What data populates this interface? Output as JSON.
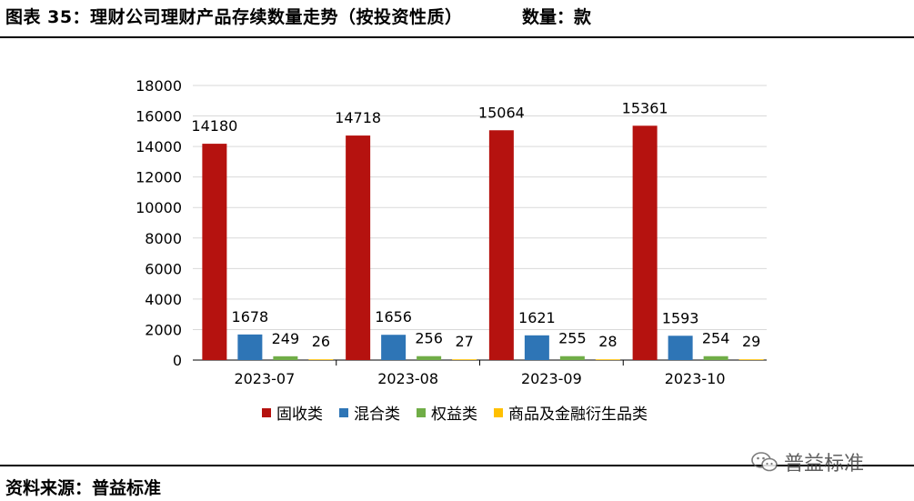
{
  "header": {
    "title": "图表 35：理财公司理财产品存续数量走势（按投资性质）",
    "unit": "数量：款"
  },
  "footer": {
    "source": "资料来源：普益标准",
    "watermark": "普益标准"
  },
  "colors": {
    "fixed_income": "#B5120F",
    "mixed": "#2E75B6",
    "equity": "#70AD47",
    "commodity": "#FFC000",
    "grid": "#D9D9D9",
    "axis": "#000000"
  },
  "icons": {
    "watermark": "wechat-icon"
  },
  "chart_data": {
    "type": "bar",
    "categories": [
      "2023-07",
      "2023-08",
      "2023-09",
      "2023-10"
    ],
    "series": [
      {
        "name": "固收类",
        "values": [
          14180,
          14718,
          15064,
          15361
        ]
      },
      {
        "name": "混合类",
        "values": [
          1678,
          1656,
          1621,
          1593
        ]
      },
      {
        "name": "权益类",
        "values": [
          249,
          256,
          255,
          254
        ]
      },
      {
        "name": "商品及金融衍生品类",
        "values": [
          26,
          27,
          28,
          29
        ]
      }
    ],
    "ylim": [
      0,
      18000
    ],
    "yticks": [
      0,
      2000,
      4000,
      6000,
      8000,
      10000,
      12000,
      14000,
      16000,
      18000
    ],
    "grid": true,
    "legend": "bottom"
  }
}
